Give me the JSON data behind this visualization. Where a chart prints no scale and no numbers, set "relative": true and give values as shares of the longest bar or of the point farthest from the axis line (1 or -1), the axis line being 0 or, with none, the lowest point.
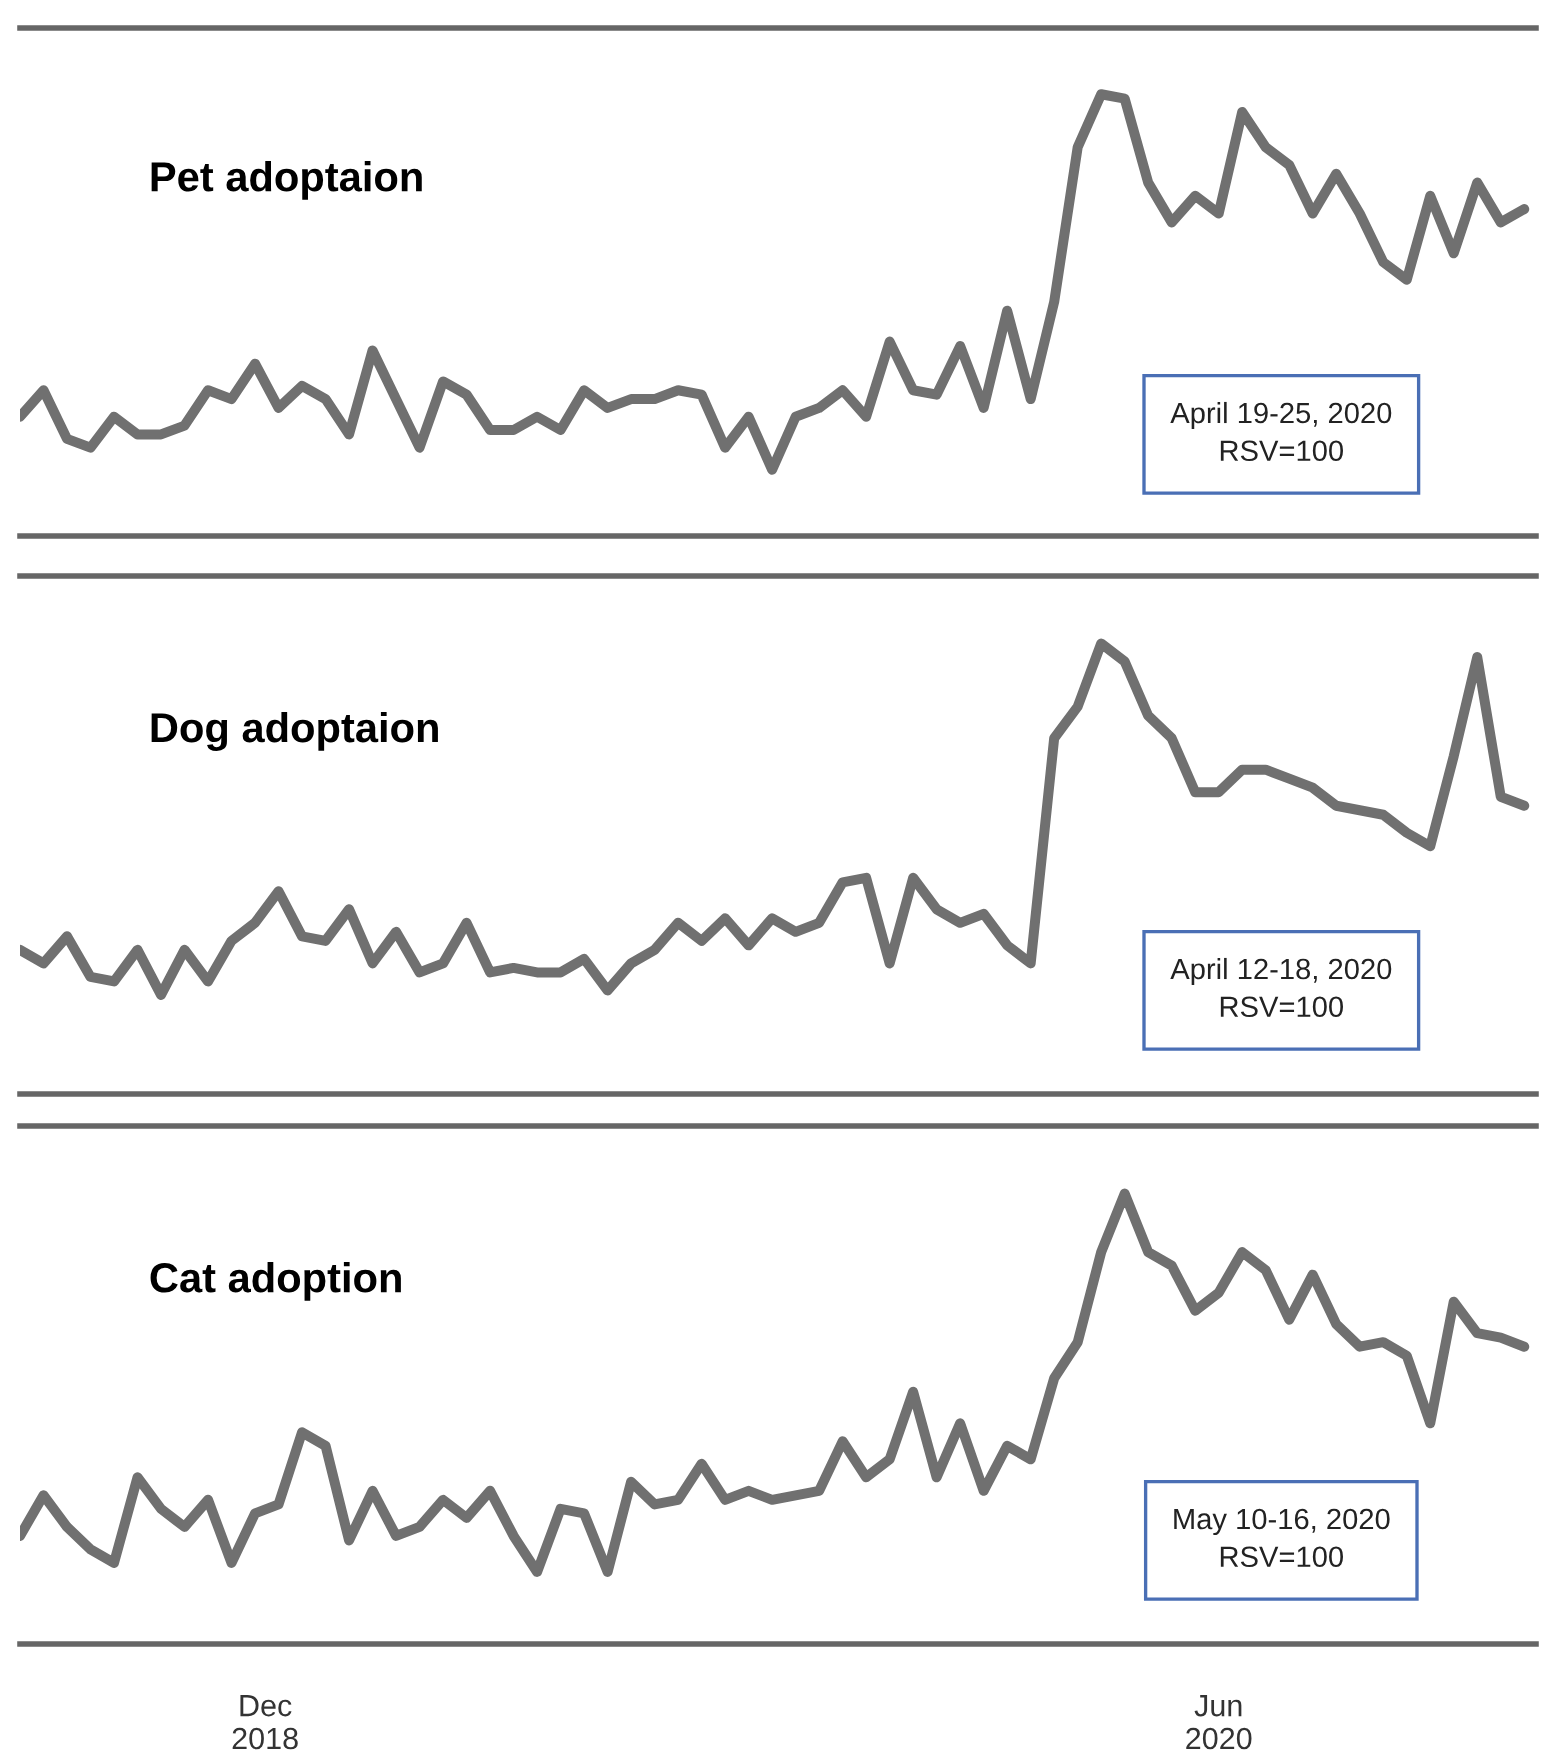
{
  "chart_data": [
    {
      "type": "line",
      "title": "Pet adoptaion",
      "relative": true,
      "color": "#707070",
      "tick_labels": false,
      "xlim": [
        "2018-07-08",
        "2020-12-27"
      ],
      "x": [
        "2018-07-08",
        "2018-07-22",
        "2018-08-05",
        "2018-08-19",
        "2018-09-02",
        "2018-09-16",
        "2018-09-30",
        "2018-10-14",
        "2018-10-28",
        "2018-11-11",
        "2018-11-25",
        "2018-12-09",
        "2018-12-23",
        "2019-01-06",
        "2019-01-20",
        "2019-02-03",
        "2019-02-17",
        "2019-03-03",
        "2019-03-17",
        "2019-03-31",
        "2019-04-14",
        "2019-04-28",
        "2019-05-12",
        "2019-05-26",
        "2019-06-09",
        "2019-06-23",
        "2019-07-07",
        "2019-07-21",
        "2019-08-04",
        "2019-08-18",
        "2019-09-01",
        "2019-09-15",
        "2019-09-29",
        "2019-10-13",
        "2019-10-27",
        "2019-11-10",
        "2019-11-24",
        "2019-12-08",
        "2019-12-22",
        "2020-01-05",
        "2020-01-19",
        "2020-02-02",
        "2020-02-16",
        "2020-03-01",
        "2020-03-15",
        "2020-03-29",
        "2020-04-12",
        "2020-04-26",
        "2020-05-10",
        "2020-05-24",
        "2020-06-07",
        "2020-06-21",
        "2020-07-05",
        "2020-07-19",
        "2020-08-02",
        "2020-08-16",
        "2020-08-30",
        "2020-09-13",
        "2020-09-27",
        "2020-10-11",
        "2020-10-25",
        "2020-11-08",
        "2020-11-22",
        "2020-12-06",
        "2020-12-20"
      ],
      "values": [
        0.27,
        0.33,
        0.22,
        0.2,
        0.27,
        0.23,
        0.23,
        0.25,
        0.33,
        0.31,
        0.39,
        0.29,
        0.34,
        0.31,
        0.23,
        0.42,
        0.31,
        0.2,
        0.35,
        0.32,
        0.24,
        0.24,
        0.27,
        0.24,
        0.33,
        0.29,
        0.31,
        0.31,
        0.33,
        0.32,
        0.2,
        0.27,
        0.15,
        0.27,
        0.29,
        0.33,
        0.27,
        0.44,
        0.33,
        0.32,
        0.43,
        0.29,
        0.51,
        0.31,
        0.53,
        0.88,
        1.0,
        0.99,
        0.8,
        0.71,
        0.77,
        0.73,
        0.96,
        0.88,
        0.84,
        0.73,
        0.82,
        0.73,
        0.62,
        0.58,
        0.77,
        0.64,
        0.8,
        0.71,
        0.74
      ],
      "annotations": [
        "April 19-25, 2020\nRSV=100"
      ]
    },
    {
      "type": "line",
      "title": "Dog adoptaion",
      "relative": true,
      "color": "#707070",
      "tick_labels": false,
      "xlim": [
        "2018-07-08",
        "2020-12-27"
      ],
      "x": [
        "2018-07-08",
        "2018-07-22",
        "2018-08-05",
        "2018-08-19",
        "2018-09-02",
        "2018-09-16",
        "2018-09-30",
        "2018-10-14",
        "2018-10-28",
        "2018-11-11",
        "2018-11-25",
        "2018-12-09",
        "2018-12-23",
        "2019-01-06",
        "2019-01-20",
        "2019-02-03",
        "2019-02-17",
        "2019-03-03",
        "2019-03-17",
        "2019-03-31",
        "2019-04-14",
        "2019-04-28",
        "2019-05-12",
        "2019-05-26",
        "2019-06-09",
        "2019-06-23",
        "2019-07-07",
        "2019-07-21",
        "2019-08-04",
        "2019-08-18",
        "2019-09-01",
        "2019-09-15",
        "2019-09-29",
        "2019-10-13",
        "2019-10-27",
        "2019-11-10",
        "2019-11-24",
        "2019-12-08",
        "2019-12-22",
        "2020-01-05",
        "2020-01-19",
        "2020-02-02",
        "2020-02-16",
        "2020-03-01",
        "2020-03-15",
        "2020-03-29",
        "2020-04-12",
        "2020-04-26",
        "2020-05-10",
        "2020-05-24",
        "2020-06-07",
        "2020-06-21",
        "2020-07-05",
        "2020-07-19",
        "2020-08-02",
        "2020-08-16",
        "2020-08-30",
        "2020-09-13",
        "2020-09-27",
        "2020-10-11",
        "2020-10-25",
        "2020-11-08",
        "2020-11-22",
        "2020-12-06",
        "2020-12-20"
      ],
      "values": [
        0.32,
        0.29,
        0.35,
        0.26,
        0.25,
        0.32,
        0.22,
        0.32,
        0.25,
        0.34,
        0.38,
        0.45,
        0.35,
        0.34,
        0.41,
        0.29,
        0.36,
        0.27,
        0.29,
        0.38,
        0.27,
        0.28,
        0.27,
        0.27,
        0.3,
        0.23,
        0.29,
        0.32,
        0.38,
        0.34,
        0.39,
        0.33,
        0.39,
        0.36,
        0.38,
        0.47,
        0.48,
        0.29,
        0.48,
        0.41,
        0.38,
        0.4,
        0.33,
        0.29,
        0.79,
        0.86,
        1.0,
        0.96,
        0.84,
        0.79,
        0.67,
        0.67,
        0.72,
        0.72,
        0.7,
        0.68,
        0.64,
        0.63,
        0.62,
        0.58,
        0.55,
        0.75,
        0.97,
        0.66,
        0.64
      ],
      "annotations": [
        "April 12-18, 2020\nRSV=100"
      ]
    },
    {
      "type": "line",
      "title": "Cat adoption",
      "relative": true,
      "color": "#707070",
      "tick_labels": "x",
      "xlim": [
        "2018-07-08",
        "2020-12-27"
      ],
      "xticks": [
        {
          "value": "2018-12-01",
          "label": "Dec\n2018"
        },
        {
          "value": "2020-06-21",
          "label": "Jun\n2020"
        }
      ],
      "x": [
        "2018-07-08",
        "2018-07-22",
        "2018-08-05",
        "2018-08-19",
        "2018-09-02",
        "2018-09-16",
        "2018-09-30",
        "2018-10-14",
        "2018-10-28",
        "2018-11-11",
        "2018-11-25",
        "2018-12-09",
        "2018-12-23",
        "2019-01-06",
        "2019-01-20",
        "2019-02-03",
        "2019-02-17",
        "2019-03-03",
        "2019-03-17",
        "2019-03-31",
        "2019-04-14",
        "2019-04-28",
        "2019-05-12",
        "2019-05-26",
        "2019-06-09",
        "2019-06-23",
        "2019-07-07",
        "2019-07-21",
        "2019-08-04",
        "2019-08-18",
        "2019-09-01",
        "2019-09-15",
        "2019-09-29",
        "2019-10-13",
        "2019-10-27",
        "2019-11-10",
        "2019-11-24",
        "2019-12-08",
        "2019-12-22",
        "2020-01-05",
        "2020-01-19",
        "2020-02-02",
        "2020-02-16",
        "2020-03-01",
        "2020-03-15",
        "2020-03-29",
        "2020-04-12",
        "2020-04-26",
        "2020-05-10",
        "2020-05-24",
        "2020-06-07",
        "2020-06-21",
        "2020-07-05",
        "2020-07-19",
        "2020-08-02",
        "2020-08-16",
        "2020-08-30",
        "2020-09-13",
        "2020-09-27",
        "2020-10-11",
        "2020-10-25",
        "2020-11-08",
        "2020-11-22",
        "2020-12-06",
        "2020-12-20"
      ],
      "values": [
        0.24,
        0.33,
        0.26,
        0.21,
        0.18,
        0.37,
        0.3,
        0.26,
        0.32,
        0.18,
        0.29,
        0.31,
        0.47,
        0.44,
        0.23,
        0.34,
        0.24,
        0.26,
        0.32,
        0.28,
        0.34,
        0.24,
        0.16,
        0.3,
        0.29,
        0.16,
        0.36,
        0.31,
        0.32,
        0.4,
        0.32,
        0.34,
        0.32,
        0.33,
        0.34,
        0.45,
        0.37,
        0.41,
        0.56,
        0.37,
        0.49,
        0.34,
        0.44,
        0.41,
        0.59,
        0.67,
        0.87,
        1.0,
        0.87,
        0.84,
        0.74,
        0.78,
        0.87,
        0.83,
        0.72,
        0.82,
        0.71,
        0.66,
        0.67,
        0.64,
        0.49,
        0.76,
        0.69,
        0.68,
        0.66
      ],
      "annotations": [
        "May 10-16, 2020\nRSV=100"
      ]
    }
  ]
}
